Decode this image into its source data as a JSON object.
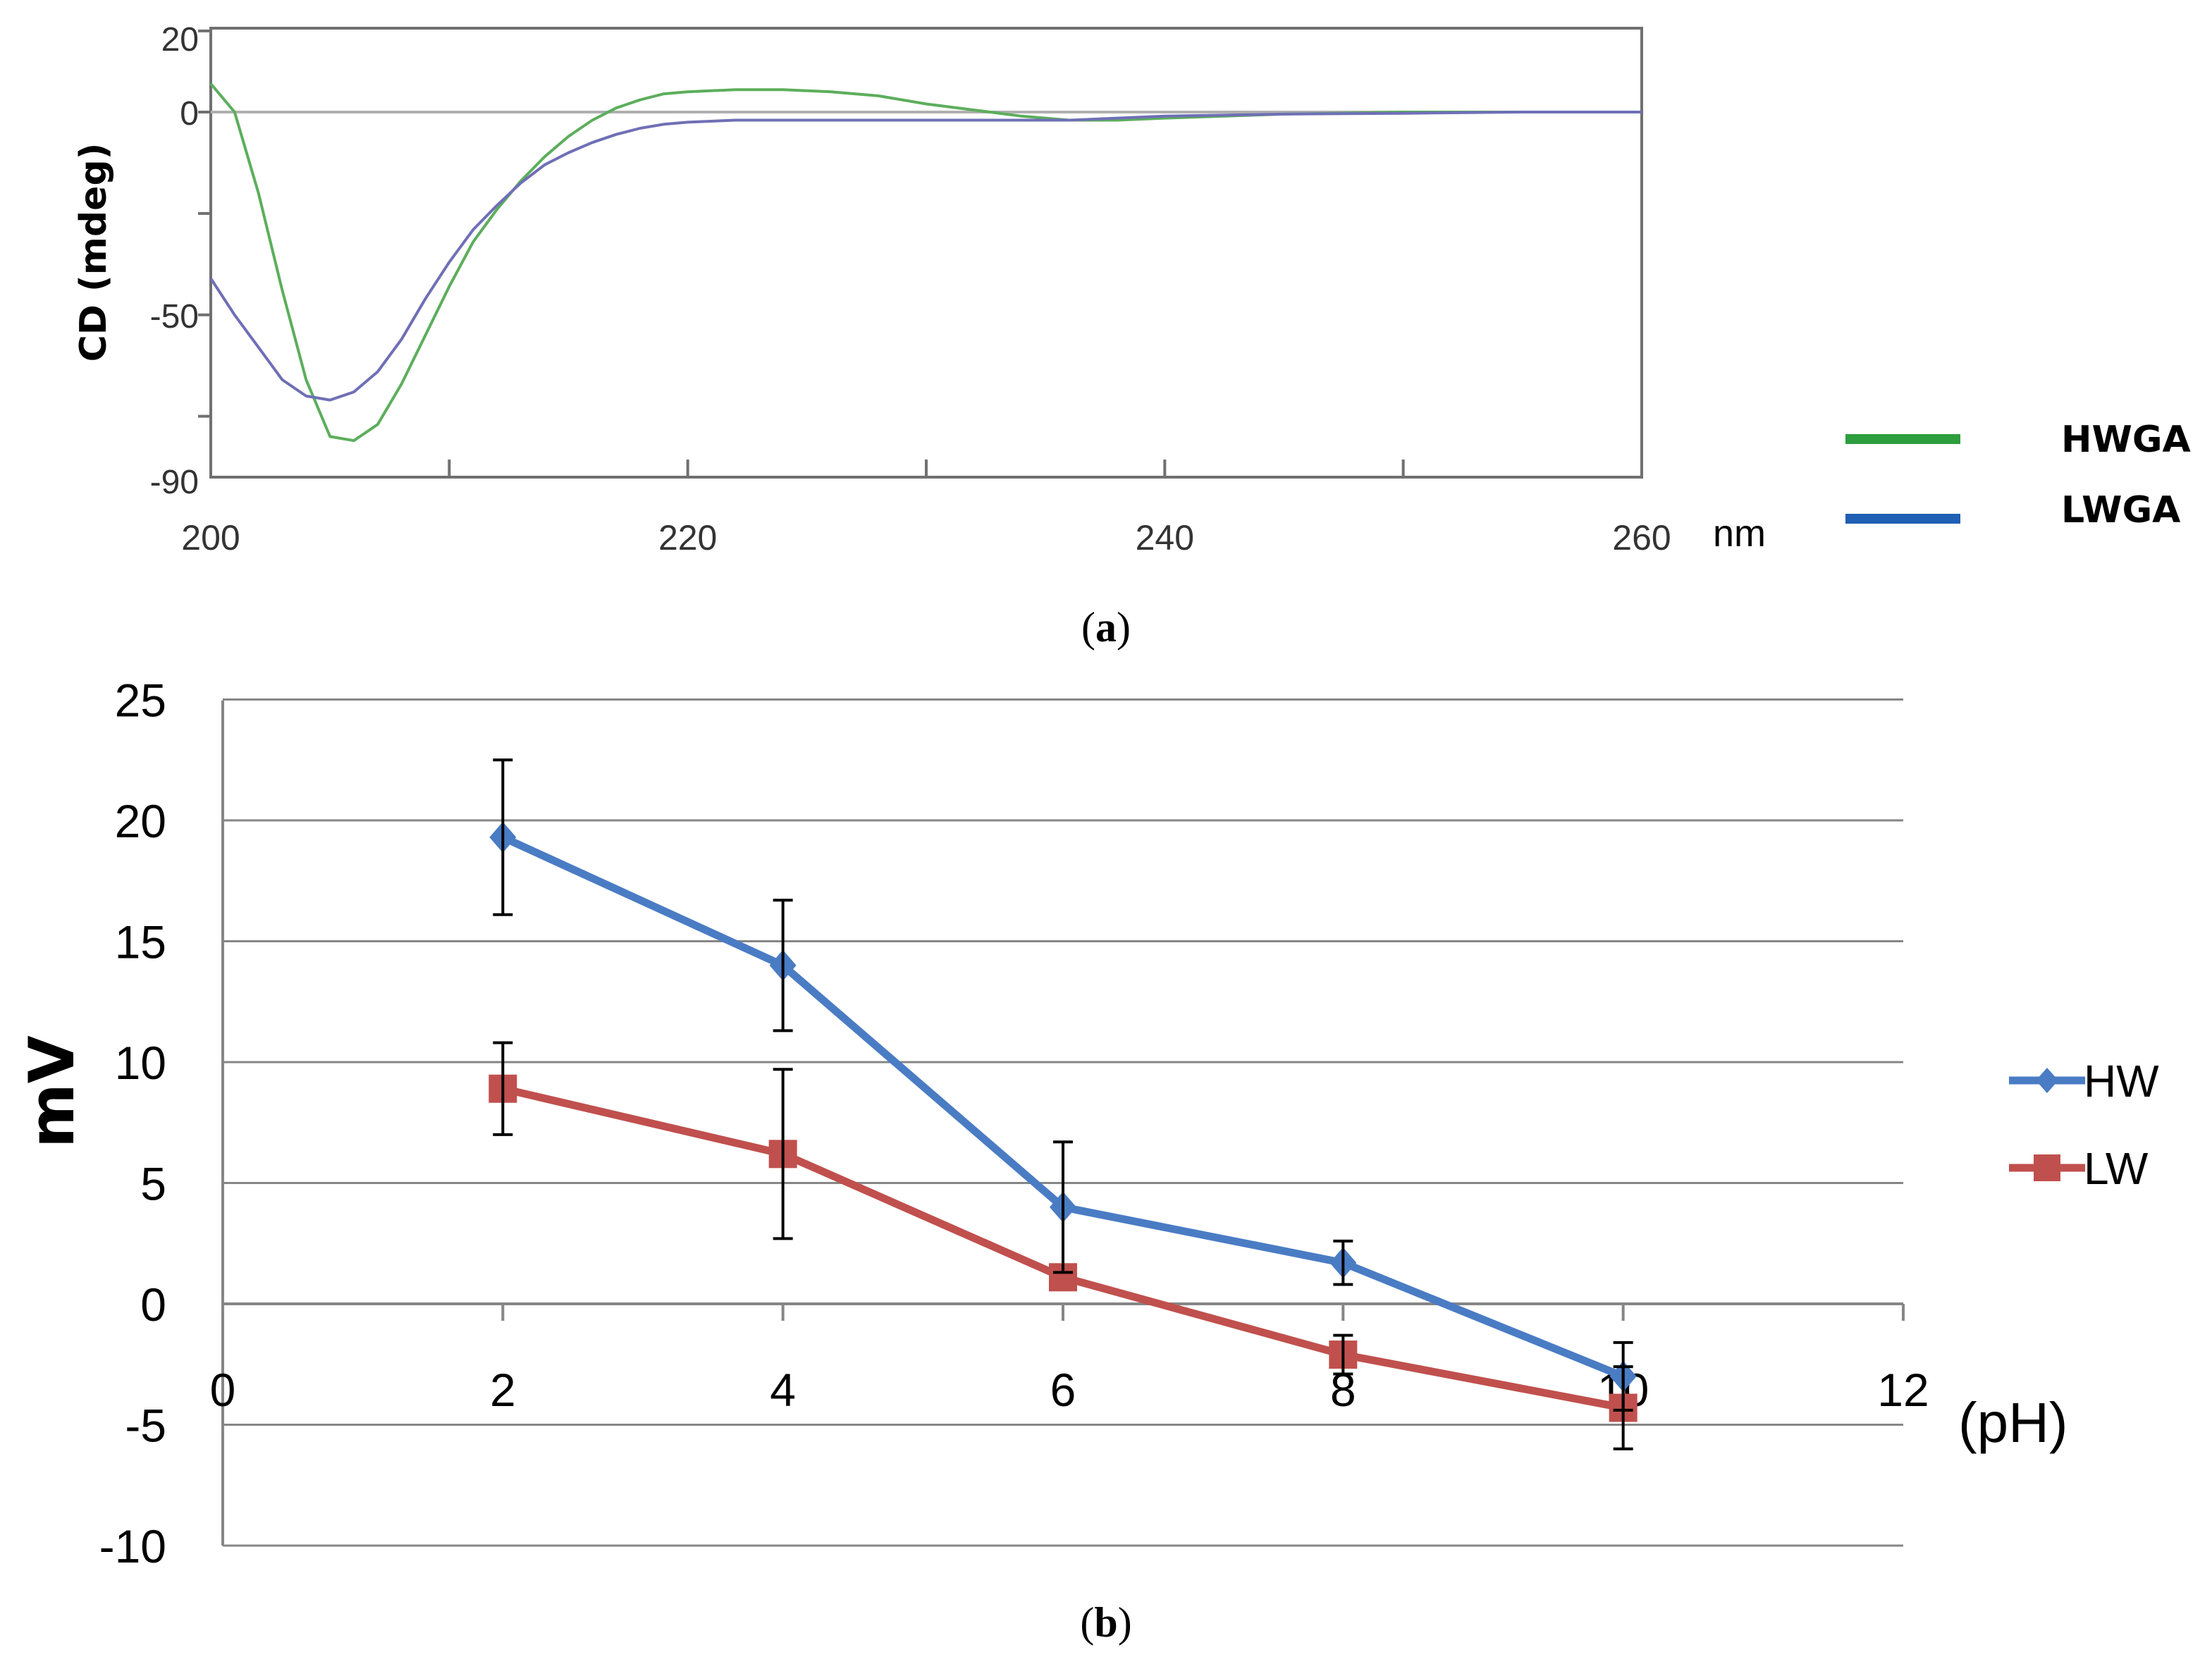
{
  "chart_data": [
    {
      "panel": "(a)",
      "panel_label_letter": "a",
      "type": "line",
      "ylabel": "CD (mdeg)",
      "xunit": "nm",
      "xlim": [
        200,
        260
      ],
      "ylim": [
        -90,
        20
      ],
      "x_ticks": [
        "200",
        "220",
        "240",
        "260"
      ],
      "y_ticks": [
        "20",
        "0",
        "-50",
        "-90"
      ],
      "colors": {
        "HWGA": "#5cae5c",
        "LWGA": "#6f6fb6",
        "legend_HWGA": "#2e9e3e",
        "legend_LWGA": "#1f5fb4",
        "zero_line": "#b0b0b0"
      },
      "series": [
        {
          "name": "HWGA",
          "x": [
            200,
            201,
            202,
            203,
            204,
            205,
            206,
            207,
            208,
            209,
            210,
            211,
            212,
            213,
            214,
            215,
            216,
            217,
            218,
            219,
            220,
            222,
            224,
            226,
            228,
            230,
            232,
            234,
            236,
            238,
            240,
            245,
            250,
            255,
            260
          ],
          "y": [
            7,
            0,
            -20,
            -44,
            -66,
            -80,
            -81,
            -77,
            -67,
            -55,
            -43,
            -32,
            -24,
            -17,
            -11,
            -6,
            -2,
            1,
            3,
            4.5,
            5,
            5.5,
            5.5,
            5,
            4,
            2,
            0.5,
            -1,
            -2,
            -2,
            -1.5,
            -0.5,
            0,
            0,
            0
          ]
        },
        {
          "name": "LWGA",
          "x": [
            200,
            201,
            202,
            203,
            204,
            205,
            206,
            207,
            208,
            209,
            210,
            211,
            212,
            213,
            214,
            215,
            216,
            217,
            218,
            219,
            220,
            222,
            224,
            226,
            228,
            230,
            232,
            234,
            236,
            238,
            240,
            245,
            250,
            255,
            260
          ],
          "y": [
            -41,
            -50,
            -58,
            -66,
            -70,
            -71,
            -69,
            -64,
            -56,
            -46,
            -37,
            -29,
            -23,
            -17.5,
            -13,
            -10,
            -7.5,
            -5.5,
            -4,
            -3,
            -2.5,
            -2,
            -2,
            -2,
            -2,
            -2,
            -2,
            -2,
            -2,
            -1.5,
            -1,
            -0.5,
            -0.3,
            0,
            0
          ]
        }
      ]
    },
    {
      "panel": "(b)",
      "panel_label_letter": "b",
      "type": "line",
      "ylabel": "mV",
      "xlabel": "(pH)",
      "xlim": [
        0,
        12
      ],
      "ylim": [
        -10,
        25
      ],
      "x_ticks": [
        "0",
        "2",
        "4",
        "6",
        "8",
        "10",
        "12"
      ],
      "y_ticks": [
        "25",
        "20",
        "15",
        "10",
        "5",
        "0",
        "-5",
        "-10"
      ],
      "legend_position": "right",
      "colors": {
        "HW": "#4a7cc4",
        "LW": "#c0504d",
        "gridline": "#868686",
        "errorbar": "#000000"
      },
      "series": [
        {
          "name": "HW",
          "marker": "diamond",
          "x": [
            2,
            4,
            6,
            8,
            10
          ],
          "y": [
            19.3,
            14,
            4,
            1.7,
            -3
          ],
          "err": [
            3.2,
            2.7,
            2.7,
            0.9,
            1.4
          ]
        },
        {
          "name": "LW",
          "marker": "square",
          "x": [
            2,
            4,
            6,
            8,
            10
          ],
          "y": [
            8.9,
            6.2,
            1.1,
            -2.1,
            -4.3
          ],
          "err": [
            1.9,
            3.5,
            0,
            0.8,
            1.7
          ]
        }
      ]
    }
  ]
}
